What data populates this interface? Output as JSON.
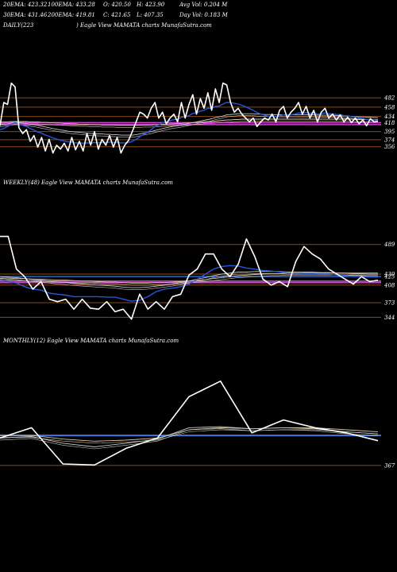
{
  "header": {
    "row1": [
      "20EMA: 423.32",
      "100EMA: 433.28",
      "O: 420.50",
      "H: 423.90",
      "Avg Vol: 0.204  M"
    ],
    "row2": [
      "30EMA: 431.46",
      "200EMA: 419.81",
      "C: 421.65",
      "L: 407.35",
      "Day Vol: 0.183  M"
    ]
  },
  "colors": {
    "background": "#000000",
    "price": "#ffffff",
    "ema_fast": "#2a55d6",
    "ema_slow": "#c8c8c8",
    "ema_long": "#d8c8a0",
    "gridline": "#8a4a1a",
    "magenta_band": "#d040d0",
    "blue_level": "#3f78e0"
  },
  "chart_data": [
    {
      "type": "line",
      "title": "DAILY(223 ) Eagle  View  MAMATA charts MunafaSutra.com",
      "title_left": "DAILY(223",
      "title_right": ") Eagle  View  MAMATA charts MunafaSutra.com",
      "ylim": [
        335,
        560
      ],
      "levels": [
        482,
        458,
        434,
        418,
        395,
        374,
        356
      ],
      "magenta_levels": [
        413,
        418
      ],
      "series": [
        {
          "role": "price",
          "values": [
            410,
            470,
            465,
            520,
            510,
            405,
            390,
            400,
            370,
            385,
            355,
            380,
            345,
            375,
            340,
            360,
            350,
            365,
            345,
            380,
            348,
            370,
            345,
            390,
            360,
            395,
            350,
            375,
            360,
            385,
            355,
            380,
            340,
            360,
            372,
            395,
            420,
            445,
            440,
            430,
            455,
            470,
            430,
            445,
            415,
            430,
            440,
            420,
            470,
            430,
            465,
            490,
            440,
            480,
            455,
            495,
            450,
            505,
            470,
            520,
            515,
            470,
            445,
            455,
            440,
            430,
            420,
            430,
            408,
            420,
            430,
            425,
            440,
            420,
            450,
            460,
            430,
            445,
            455,
            470,
            440,
            460,
            430,
            450,
            420,
            445,
            455,
            430,
            440,
            425,
            438,
            420,
            432,
            418,
            430,
            415,
            425,
            410,
            428,
            420,
            422
          ]
        },
        {
          "role": "ema_fast",
          "values": [
            400,
            403,
            408,
            414,
            418,
            415,
            411,
            408,
            403,
            399,
            394,
            391,
            386,
            383,
            379,
            376,
            373,
            371,
            369,
            368,
            366,
            366,
            365,
            366,
            365,
            367,
            366,
            367,
            367,
            368,
            367,
            368,
            366,
            366,
            367,
            370,
            375,
            382,
            388,
            393,
            400,
            408,
            412,
            418,
            420,
            423,
            426,
            426,
            432,
            433,
            436,
            442,
            443,
            448,
            450,
            455,
            455,
            460,
            461,
            466,
            470,
            470,
            468,
            466,
            463,
            459,
            454,
            450,
            444,
            440,
            437,
            434,
            435,
            433,
            435,
            438,
            437,
            438,
            440,
            443,
            442,
            444,
            442,
            443,
            440,
            441,
            443,
            441,
            441,
            439,
            439,
            436,
            436,
            433,
            433,
            430,
            429,
            426,
            426,
            425,
            424
          ]
        },
        {
          "role": "ema_slow",
          "values": [
            413,
            414,
            415,
            417,
            419,
            418,
            417,
            416,
            414,
            413,
            411,
            409,
            407,
            405,
            403,
            401,
            399,
            398,
            396,
            395,
            394,
            393,
            392,
            391,
            390,
            390,
            389,
            389,
            388,
            388,
            387,
            387,
            386,
            386,
            386,
            386,
            387,
            389,
            391,
            393,
            395,
            398,
            400,
            403,
            405,
            407,
            409,
            410,
            412,
            414,
            416,
            418,
            420,
            422,
            424,
            426,
            428,
            431,
            433,
            435,
            438,
            439,
            440,
            441,
            441,
            441,
            441,
            441,
            440,
            440,
            439,
            439,
            439,
            438,
            438,
            438,
            438,
            438,
            438,
            438,
            438,
            438,
            438,
            438,
            437,
            437,
            437,
            437,
            437,
            436,
            436,
            435,
            435,
            434,
            434,
            433,
            433,
            432,
            432,
            431,
            431
          ]
        },
        {
          "role": "ema_long",
          "values": [
            420,
            420,
            420,
            421,
            421,
            421,
            421,
            421,
            420,
            420,
            420,
            419,
            419,
            418,
            418,
            417,
            417,
            416,
            416,
            415,
            415,
            414,
            414,
            414,
            413,
            413,
            413,
            412,
            412,
            412,
            412,
            411,
            411,
            411,
            411,
            411,
            411,
            411,
            412,
            412,
            412,
            413,
            413,
            414,
            414,
            415,
            415,
            416,
            416,
            417,
            417,
            418,
            419,
            419,
            420,
            421,
            421,
            422,
            423,
            424,
            425,
            425,
            426,
            426,
            427,
            427,
            427,
            427,
            427,
            427,
            427,
            427,
            427,
            427,
            427,
            427,
            427,
            427,
            427,
            427,
            427,
            427,
            427,
            427,
            427,
            427,
            427,
            427,
            427,
            427,
            427,
            427,
            427,
            427,
            426,
            426,
            426,
            426,
            426,
            426,
            426
          ]
        }
      ]
    },
    {
      "type": "line",
      "title": "WEEKLY(48) Eagle  View  MAMATA charts MunafaSutra.com",
      "ylim": [
        530,
        520
      ],
      "ylim_note": "",
      "levels": [
        489,
        430,
        408,
        373,
        344
      ],
      "level_labels": [
        "489",
        "430",
        "425",
        "408",
        "373",
        "344"
      ],
      "magenta_levels": [
        413,
        416
      ],
      "blue_level": 425,
      "series": [
        {
          "role": "price",
          "values": [
            505,
            505,
            440,
            425,
            400,
            415,
            380,
            375,
            380,
            360,
            380,
            362,
            360,
            375,
            355,
            360,
            340,
            390,
            360,
            375,
            360,
            385,
            390,
            428,
            440,
            470,
            470,
            440,
            425,
            450,
            500,
            465,
            420,
            408,
            415,
            405,
            455,
            485,
            470,
            460,
            440,
            430,
            420,
            410,
            425,
            415,
            418
          ]
        },
        {
          "role": "ema_fast",
          "values": [
            420,
            415,
            412,
            405,
            400,
            398,
            392,
            390,
            388,
            385,
            385,
            385,
            385,
            384,
            384,
            380,
            376,
            378,
            385,
            395,
            400,
            402,
            405,
            410,
            420,
            430,
            440,
            445,
            447,
            446,
            442,
            440,
            437,
            436,
            434,
            432,
            432,
            431,
            431,
            430,
            430,
            428,
            427,
            425,
            425,
            424,
            424
          ]
        },
        {
          "role": "ema_slow",
          "values": [
            425,
            424,
            423,
            421,
            419,
            418,
            416,
            414,
            413,
            411,
            410,
            409,
            408,
            407,
            406,
            404,
            403,
            403,
            404,
            406,
            408,
            410,
            413,
            416,
            420,
            423,
            427,
            430,
            432,
            434,
            434,
            435,
            435,
            435,
            435,
            434,
            434,
            434,
            434,
            433,
            433,
            432,
            432,
            431,
            431,
            430,
            430
          ]
        },
        {
          "role": "ema_long",
          "values": [
            422,
            422,
            421,
            421,
            420,
            420,
            419,
            418,
            418,
            417,
            416,
            416,
            415,
            414,
            414,
            413,
            412,
            412,
            412,
            413,
            413,
            414,
            415,
            416,
            418,
            419,
            421,
            423,
            425,
            427,
            428,
            429,
            430,
            431,
            431,
            432,
            432,
            432,
            432,
            432,
            432,
            432,
            432,
            432,
            432,
            432,
            432
          ]
        }
      ]
    },
    {
      "type": "line",
      "title": "MONTHLY(12) Eagle  View  MAMATA charts MunafaSutra.com",
      "levels": [
        367
      ],
      "level_labels": [
        "367"
      ],
      "blue_level": 425,
      "series": [
        {
          "role": "price",
          "values": [
            420,
            440,
            370,
            368,
            400,
            420,
            500,
            530,
            430,
            455,
            440,
            430,
            415
          ]
        },
        {
          "role": "ema_slow",
          "values": [
            420,
            423,
            410,
            403,
            410,
            418,
            440,
            442,
            438,
            440,
            438,
            432,
            428
          ]
        },
        {
          "role": "ema_long",
          "values": [
            425,
            425,
            418,
            414,
            416,
            420,
            436,
            440,
            438,
            440,
            440,
            436,
            432
          ]
        }
      ]
    }
  ]
}
